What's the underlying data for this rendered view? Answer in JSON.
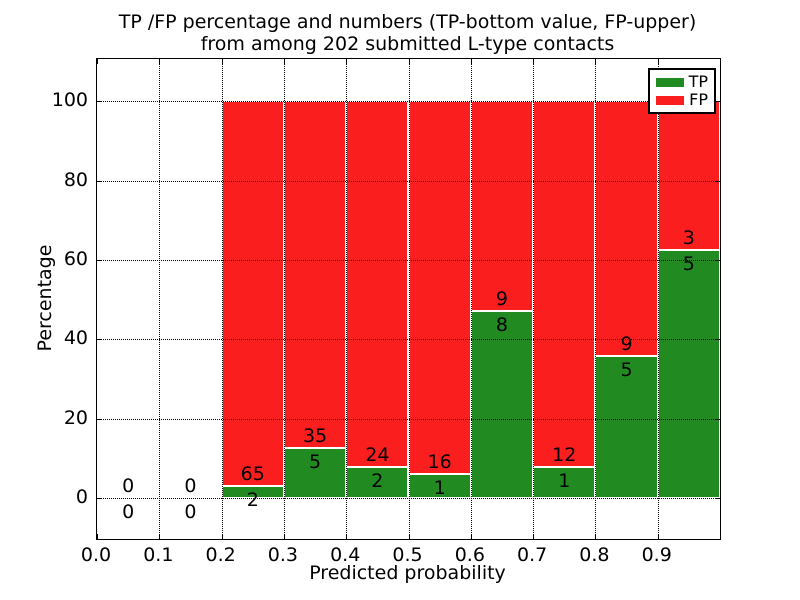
{
  "chart_data": {
    "type": "bar",
    "stacked": true,
    "title_line1": "TP /FP percentage and numbers (TP-bottom value, FP-upper)",
    "title_line2": "from among 202 submitted L-type contacts",
    "xlabel": "Predicted probability",
    "ylabel": "Percentage",
    "xlim": [
      0.0,
      1.0
    ],
    "ylim": [
      -10.4,
      110.7
    ],
    "x_ticks": [
      "0.0",
      "0.1",
      "0.2",
      "0.3",
      "0.4",
      "0.5",
      "0.6",
      "0.7",
      "0.8",
      "0.9"
    ],
    "y_ticks": [
      "0",
      "20",
      "40",
      "60",
      "80",
      "100"
    ],
    "grid": "dotted black, drawn above bars",
    "bin_width": 0.1,
    "categories": [
      "0.0-0.1",
      "0.1-0.2",
      "0.2-0.3",
      "0.3-0.4",
      "0.4-0.5",
      "0.5-0.6",
      "0.6-0.7",
      "0.7-0.8",
      "0.8-0.9",
      "0.9-1.0"
    ],
    "series": [
      {
        "name": "TP",
        "counts": [
          0,
          0,
          2,
          5,
          2,
          1,
          8,
          1,
          5,
          5
        ]
      },
      {
        "name": "FP",
        "counts": [
          0,
          0,
          65,
          35,
          24,
          16,
          9,
          12,
          9,
          3
        ]
      }
    ],
    "tp_percent_heights": [
      null,
      null,
      2.99,
      12.5,
      7.69,
      5.88,
      47.06,
      7.69,
      35.71,
      62.5
    ],
    "fp_percent_heights": [
      null,
      null,
      97.01,
      87.5,
      92.31,
      94.12,
      52.94,
      92.31,
      64.29,
      37.5
    ],
    "annotation_rule": "FP count printed just above green/red boundary, TP count just below; zeros straddle the 0 line",
    "legend": {
      "position": "upper right",
      "entries": [
        {
          "label": "TP",
          "color": "#218a21"
        },
        {
          "label": "FP",
          "color": "#fb1e1e"
        }
      ]
    },
    "colors": {
      "tp": "#218a21",
      "fp": "#fb1e1e",
      "bar_edge": "#ffffff",
      "text": "#000000",
      "background": "#ffffff"
    }
  }
}
